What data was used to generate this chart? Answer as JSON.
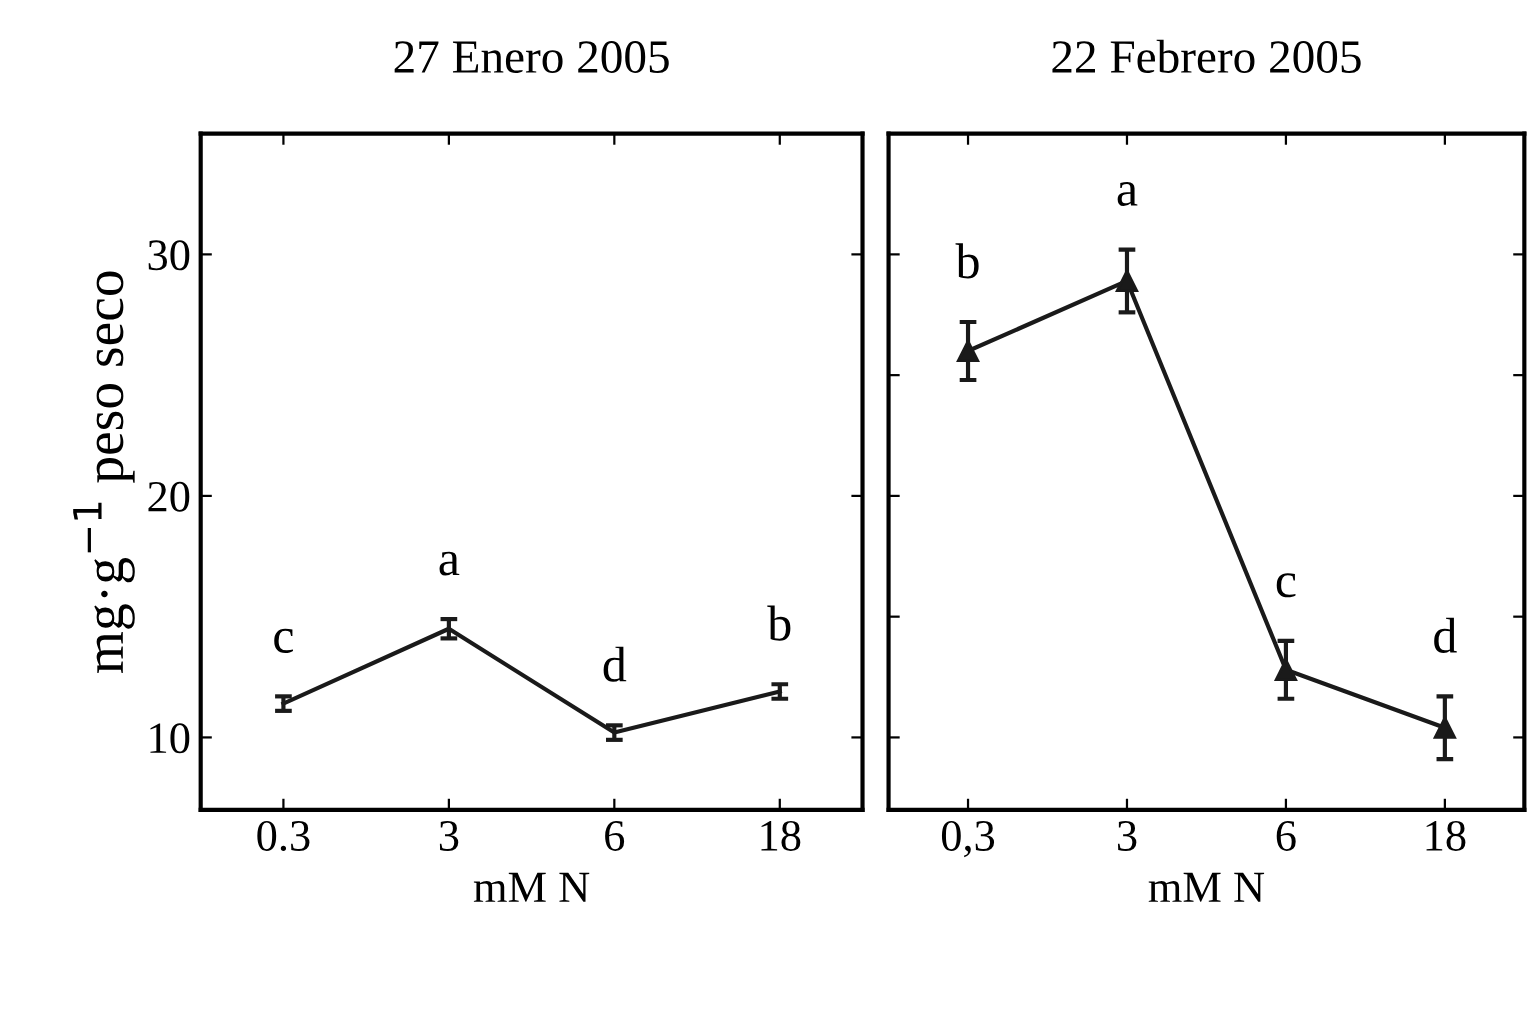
{
  "chart_data": [
    {
      "type": "line",
      "title": "27 Enero 2005",
      "xlabel": "mM N",
      "ylabel": "mg·g$^{−1}$ peso seco",
      "categories": [
        "0.3",
        "3",
        "6",
        "18"
      ],
      "series": [
        {
          "color": "#1a1a1a",
          "values": [
            11.4,
            14.5,
            10.2,
            11.9
          ],
          "errors": [
            0.3,
            0.4,
            0.3,
            0.3
          ]
        }
      ],
      "marker": "none",
      "ylim": [
        7,
        35
      ],
      "yticks": [
        10,
        20,
        30
      ],
      "annotations": [
        "c",
        "a",
        "d",
        "b"
      ]
    },
    {
      "type": "line",
      "title": "22 Febrero 2005",
      "xlabel": "mM N",
      "categories": [
        "0,3",
        "3",
        "6",
        "18"
      ],
      "series": [
        {
          "color": "#1a1a1a",
          "values": [
            26.0,
            28.9,
            12.8,
            10.4
          ],
          "errors": [
            1.2,
            1.3,
            1.2,
            1.3
          ]
        }
      ],
      "marker": "triangle",
      "ylim": [
        7,
        35
      ],
      "yticks": [
        {
          "value": 10,
          "label": null
        },
        {
          "value": 15,
          "label": null
        },
        {
          "value": 20,
          "label": null
        },
        {
          "value": 25,
          "label": null
        },
        {
          "value": 30,
          "label": null
        }
      ],
      "tick_labels": "x",
      "annotations": [
        "b",
        "a",
        "c",
        "d"
      ]
    }
  ]
}
